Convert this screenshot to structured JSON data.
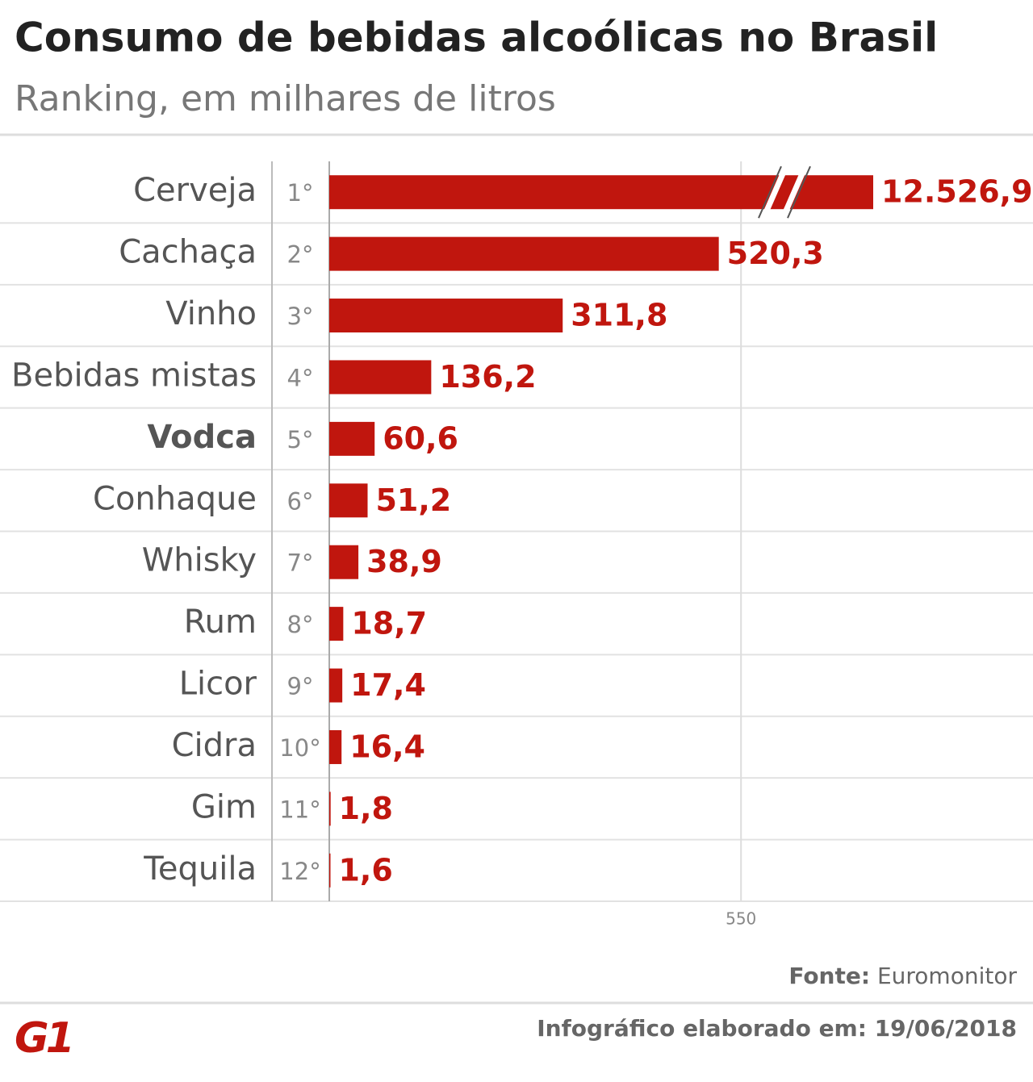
{
  "chart_data": {
    "type": "bar",
    "orientation": "horizontal",
    "title": "Consumo de bebidas alcoólicas no Brasil",
    "subtitle": "Ranking, em milhares de litros",
    "categories": [
      "Cerveja",
      "Cachaça",
      "Vinho",
      "Bebidas mistas",
      "Vodca",
      "Conhaque",
      "Whisky",
      "Rum",
      "Licor",
      "Cidra",
      "Gim",
      "Tequila"
    ],
    "ranks": [
      "1°",
      "2°",
      "3°",
      "4°",
      "5°",
      "6°",
      "7°",
      "8°",
      "9°",
      "10°",
      "11°",
      "12°"
    ],
    "values": [
      12526.9,
      520.3,
      311.8,
      136.2,
      60.6,
      51.2,
      38.9,
      18.7,
      17.4,
      16.4,
      1.8,
      1.6
    ],
    "value_labels": [
      "12.526,9",
      "520,3",
      "311,8",
      "136,2",
      "60,6",
      "51,2",
      "38,9",
      "18,7",
      "17,4",
      "16,4",
      "1,8",
      "1,6"
    ],
    "color": "#c0160e",
    "xlim": [
      0,
      940
    ],
    "xticks": [
      550
    ],
    "grid": true,
    "axis_break": true,
    "highlight": 4,
    "source_label": "Fonte:",
    "source": "Euromonitor",
    "footer": "Infográfico elaborado em: 19/06/2018",
    "logo": "G1"
  }
}
